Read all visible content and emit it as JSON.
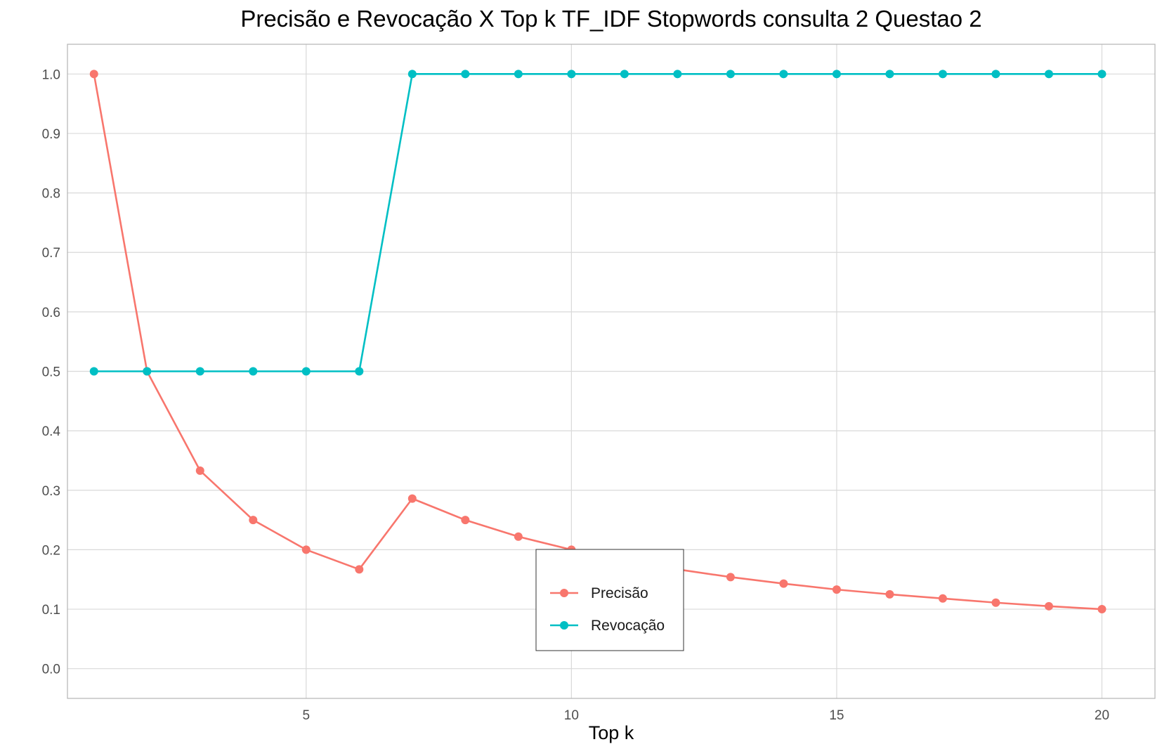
{
  "chart_data": {
    "type": "line",
    "title": "Precisão e Revocação X Top k TF_IDF Stopwords consulta 2 Questao 2",
    "xlabel": "Top k",
    "ylabel": "",
    "x": [
      1,
      2,
      3,
      4,
      5,
      6,
      7,
      8,
      9,
      10,
      11,
      12,
      13,
      14,
      15,
      16,
      17,
      18,
      19,
      20
    ],
    "xlim": [
      0.5,
      21.0
    ],
    "ylim": [
      -0.05,
      1.05
    ],
    "x_ticks": [
      5,
      10,
      15,
      20
    ],
    "x_tick_labels": [
      "5",
      "10",
      "15",
      "20"
    ],
    "y_ticks": [
      0.0,
      0.1,
      0.2,
      0.3,
      0.4,
      0.5,
      0.6,
      0.7,
      0.8,
      0.9,
      1.0
    ],
    "y_tick_labels": [
      "0.0",
      "0.1",
      "0.2",
      "0.3",
      "0.4",
      "0.5",
      "0.6",
      "0.7",
      "0.8",
      "0.9",
      "1.0"
    ],
    "grid": true,
    "legend_position": "center-bottom",
    "series": [
      {
        "name": "Precisão",
        "color": "#F8766D",
        "values": [
          1.0,
          0.5,
          0.333,
          0.25,
          0.2,
          0.167,
          0.286,
          0.25,
          0.222,
          0.2,
          0.182,
          0.167,
          0.154,
          0.143,
          0.133,
          0.125,
          0.118,
          0.111,
          0.105,
          0.1
        ]
      },
      {
        "name": "Revocação",
        "color": "#00BFC4",
        "values": [
          0.5,
          0.5,
          0.5,
          0.5,
          0.5,
          0.5,
          1.0,
          1.0,
          1.0,
          1.0,
          1.0,
          1.0,
          1.0,
          1.0,
          1.0,
          1.0,
          1.0,
          1.0,
          1.0,
          1.0
        ]
      }
    ]
  }
}
